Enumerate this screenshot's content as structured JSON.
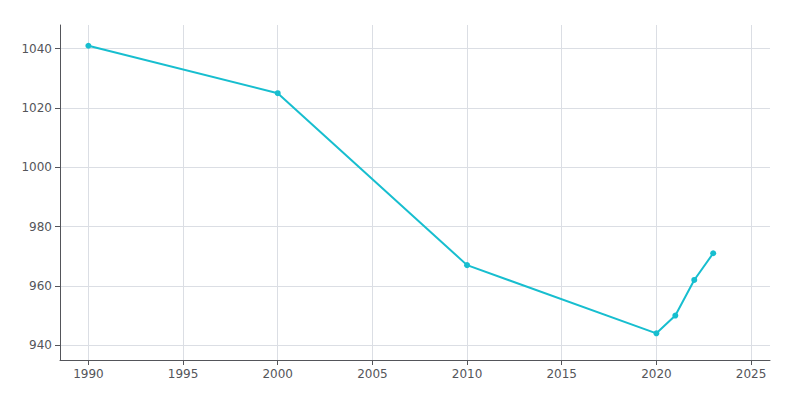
{
  "chart_data": {
    "type": "line",
    "x": [
      1990,
      2000,
      2010,
      2020,
      2021,
      2022,
      2023
    ],
    "values": [
      1041,
      1025,
      967,
      944,
      950,
      962,
      971
    ],
    "color": "#17becf",
    "marker": "circle",
    "xlim": [
      1988.5,
      2026
    ],
    "xticks": [
      1990,
      1995,
      2000,
      2005,
      2010,
      2015,
      2020,
      2025
    ],
    "ylim": [
      935,
      1048
    ],
    "yticks": [
      940,
      960,
      980,
      1000,
      1020,
      1040
    ],
    "grid": true
  }
}
